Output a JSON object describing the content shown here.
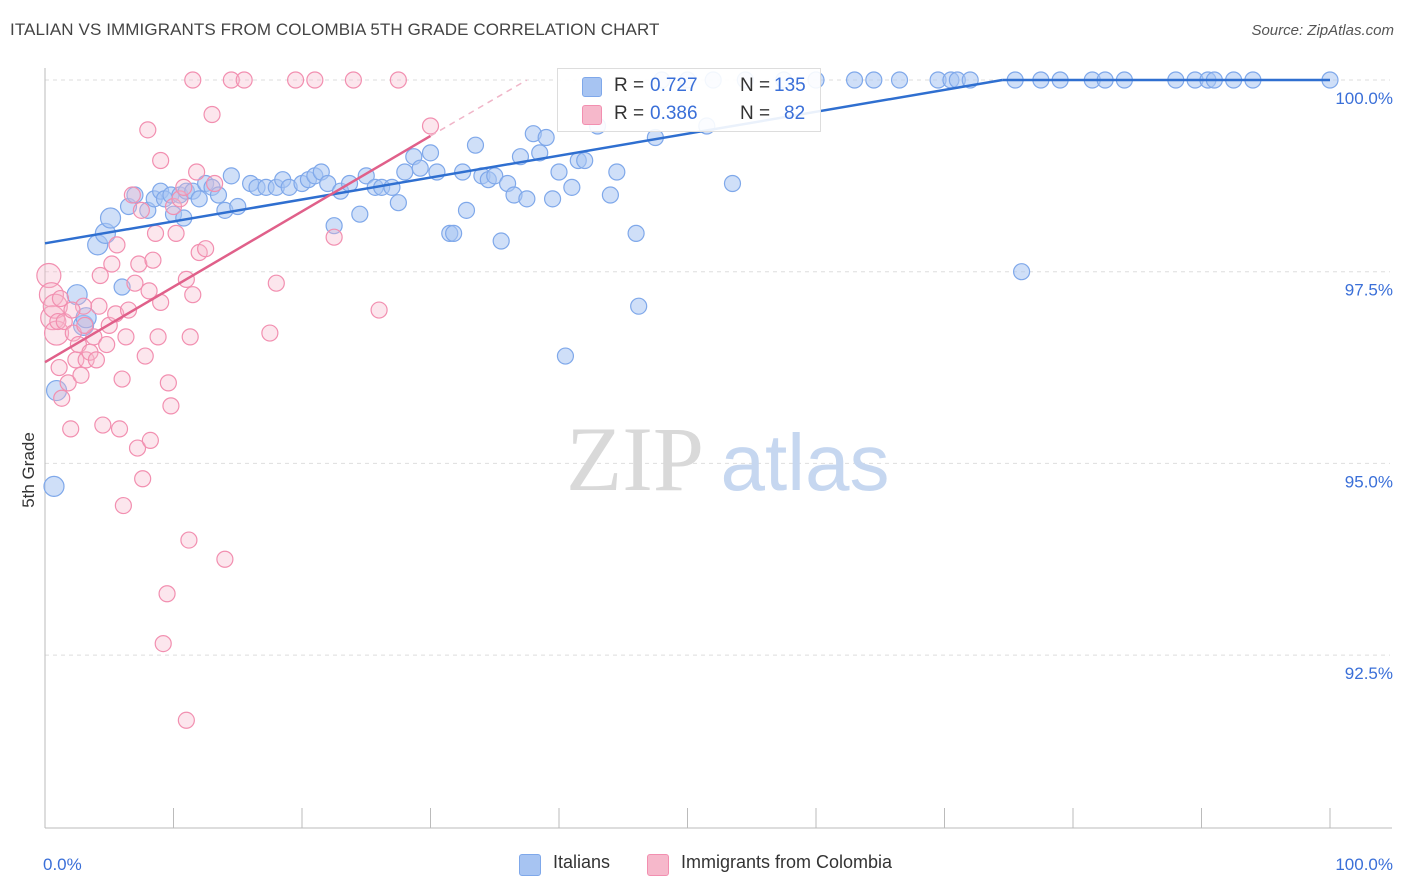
{
  "title": "ITALIAN VS IMMIGRANTS FROM COLOMBIA 5TH GRADE CORRELATION CHART",
  "source": "Source: ZipAtlas.com",
  "watermark": {
    "zip": "ZIP",
    "atlas": "atlas"
  },
  "legend_top": {
    "rows": [
      {
        "r_label": "R =",
        "r_value": "0.727",
        "n_label": "N =",
        "n_value": "135",
        "color": "#a7c4f2"
      },
      {
        "r_label": "R =",
        "r_value": "0.386",
        "n_label": "N =",
        "n_value": "82",
        "color": "#f6b8cb"
      }
    ]
  },
  "legend_bottom": [
    {
      "label": "Italians",
      "color": "#a7c4f2"
    },
    {
      "label": "Immigrants from Colombia",
      "color": "#f6b8cb"
    }
  ],
  "chart_data": {
    "type": "scatter",
    "title": "ITALIAN VS IMMIGRANTS FROM COLOMBIA 5TH GRADE CORRELATION CHART",
    "xlabel": "",
    "ylabel": "5th Grade",
    "xlim": [
      0,
      100
    ],
    "ylim": [
      90.25,
      100.35
    ],
    "x_tick_labels": [
      "0.0%",
      "100.0%"
    ],
    "y_ticks": [
      {
        "value": 100.0,
        "label": "100.0%"
      },
      {
        "value": 97.5,
        "label": "97.5%"
      },
      {
        "value": 95.0,
        "label": "95.0%"
      },
      {
        "value": 92.5,
        "label": "92.5%"
      }
    ],
    "grid": true,
    "series": [
      {
        "name": "Italians",
        "color": "#7fa8ea",
        "trend": {
          "x0": 0,
          "y0": 97.87,
          "x1": 74.5,
          "y1": 100.0
        },
        "points": [
          [
            0.7,
            94.7
          ],
          [
            0.9,
            95.95
          ],
          [
            2.5,
            97.2
          ],
          [
            3.0,
            96.8
          ],
          [
            3.2,
            96.9
          ],
          [
            4.1,
            97.85
          ],
          [
            4.7,
            98.0
          ],
          [
            5.1,
            98.2
          ],
          [
            6.0,
            97.3
          ],
          [
            6.5,
            98.35
          ],
          [
            7.0,
            98.5
          ],
          [
            8.0,
            98.3
          ],
          [
            8.5,
            98.45
          ],
          [
            9.0,
            98.55
          ],
          [
            9.3,
            98.45
          ],
          [
            9.8,
            98.5
          ],
          [
            10.5,
            98.5
          ],
          [
            10.0,
            98.25
          ],
          [
            10.8,
            98.2
          ],
          [
            11.0,
            98.55
          ],
          [
            11.5,
            98.55
          ],
          [
            12.0,
            98.45
          ],
          [
            12.5,
            98.65
          ],
          [
            13.0,
            98.6
          ],
          [
            13.5,
            98.5
          ],
          [
            14.0,
            98.3
          ],
          [
            14.5,
            98.75
          ],
          [
            15.0,
            98.35
          ],
          [
            16.0,
            98.65
          ],
          [
            16.5,
            98.6
          ],
          [
            17.2,
            98.6
          ],
          [
            18.0,
            98.6
          ],
          [
            18.5,
            98.7
          ],
          [
            19.0,
            98.6
          ],
          [
            20.0,
            98.65
          ],
          [
            20.5,
            98.7
          ],
          [
            21.0,
            98.75
          ],
          [
            21.5,
            98.8
          ],
          [
            22.0,
            98.65
          ],
          [
            22.5,
            98.1
          ],
          [
            23.0,
            98.55
          ],
          [
            23.7,
            98.65
          ],
          [
            24.5,
            98.25
          ],
          [
            25.0,
            98.75
          ],
          [
            25.7,
            98.6
          ],
          [
            26.2,
            98.6
          ],
          [
            27.0,
            98.6
          ],
          [
            27.5,
            98.4
          ],
          [
            28.0,
            98.8
          ],
          [
            28.7,
            99.0
          ],
          [
            29.2,
            98.85
          ],
          [
            30.0,
            99.05
          ],
          [
            30.5,
            98.8
          ],
          [
            31.5,
            98.0
          ],
          [
            31.8,
            98.0
          ],
          [
            32.5,
            98.8
          ],
          [
            32.8,
            98.3
          ],
          [
            33.5,
            99.15
          ],
          [
            34.0,
            98.75
          ],
          [
            34.5,
            98.7
          ],
          [
            35.0,
            98.75
          ],
          [
            35.5,
            97.9
          ],
          [
            36.0,
            98.65
          ],
          [
            36.5,
            98.5
          ],
          [
            37.0,
            99.0
          ],
          [
            37.5,
            98.45
          ],
          [
            38.0,
            99.3
          ],
          [
            38.5,
            99.05
          ],
          [
            39.0,
            99.25
          ],
          [
            39.5,
            98.45
          ],
          [
            40.0,
            98.8
          ],
          [
            40.5,
            96.4
          ],
          [
            41.0,
            98.6
          ],
          [
            41.5,
            98.95
          ],
          [
            42.0,
            98.95
          ],
          [
            43.0,
            99.4
          ],
          [
            44.0,
            98.5
          ],
          [
            44.5,
            98.8
          ],
          [
            46.0,
            98.0
          ],
          [
            46.2,
            97.05
          ],
          [
            47.5,
            99.25
          ],
          [
            48.0,
            100.0
          ],
          [
            50.0,
            100.0
          ],
          [
            51.5,
            99.4
          ],
          [
            52.0,
            100.0
          ],
          [
            53.5,
            98.65
          ],
          [
            54.5,
            100.0
          ],
          [
            57.5,
            100.0
          ],
          [
            60.0,
            100.0
          ],
          [
            63.0,
            100.0
          ],
          [
            64.5,
            100.0
          ],
          [
            66.5,
            100.0
          ],
          [
            69.5,
            100.0
          ],
          [
            70.5,
            100.0
          ],
          [
            71.0,
            100.0
          ],
          [
            72.0,
            100.0
          ],
          [
            75.5,
            100.0
          ],
          [
            76.0,
            97.5
          ],
          [
            77.5,
            100.0
          ],
          [
            79.0,
            100.0
          ],
          [
            81.5,
            100.0
          ],
          [
            82.5,
            100.0
          ],
          [
            84.0,
            100.0
          ],
          [
            88.0,
            100.0
          ],
          [
            89.5,
            100.0
          ],
          [
            90.5,
            100.0
          ],
          [
            91.0,
            100.0
          ],
          [
            92.5,
            100.0
          ],
          [
            94.0,
            100.0
          ],
          [
            100.0,
            100.0
          ]
        ]
      },
      {
        "name": "Immigrants from Colombia",
        "color": "#f28fb0",
        "trend": {
          "x0": 0,
          "y0": 96.32,
          "x1": 30.0,
          "y1": 99.27
        },
        "dashed_extension": {
          "x0": 30.0,
          "y0": 99.27,
          "x1": 37.5,
          "y1": 100.0
        },
        "points": [
          [
            0.3,
            97.45
          ],
          [
            0.5,
            97.2
          ],
          [
            0.6,
            96.9
          ],
          [
            0.8,
            97.05
          ],
          [
            0.9,
            96.7
          ],
          [
            1.0,
            96.85
          ],
          [
            1.1,
            96.25
          ],
          [
            1.2,
            97.15
          ],
          [
            1.3,
            95.85
          ],
          [
            1.5,
            96.85
          ],
          [
            1.8,
            96.05
          ],
          [
            2.0,
            95.45
          ],
          [
            2.2,
            96.7
          ],
          [
            2.4,
            96.35
          ],
          [
            2.6,
            96.55
          ],
          [
            2.8,
            96.15
          ],
          [
            3.0,
            97.05
          ],
          [
            3.2,
            96.35
          ],
          [
            3.5,
            96.45
          ],
          [
            3.8,
            96.65
          ],
          [
            4.0,
            96.35
          ],
          [
            4.2,
            97.05
          ],
          [
            4.5,
            95.5
          ],
          [
            4.8,
            96.55
          ],
          [
            5.0,
            96.8
          ],
          [
            5.2,
            97.6
          ],
          [
            5.5,
            96.95
          ],
          [
            5.8,
            95.45
          ],
          [
            6.0,
            96.1
          ],
          [
            6.3,
            96.65
          ],
          [
            6.5,
            97.0
          ],
          [
            6.8,
            98.5
          ],
          [
            7.0,
            97.35
          ],
          [
            7.2,
            95.2
          ],
          [
            7.5,
            98.3
          ],
          [
            7.8,
            96.4
          ],
          [
            7.3,
            97.6
          ],
          [
            8.0,
            99.35
          ],
          [
            8.2,
            95.3
          ],
          [
            8.4,
            97.65
          ],
          [
            8.6,
            98.0
          ],
          [
            8.8,
            96.65
          ],
          [
            9.0,
            97.1
          ],
          [
            9.2,
            92.65
          ],
          [
            9.5,
            93.3
          ],
          [
            9.8,
            95.75
          ],
          [
            10.0,
            98.35
          ],
          [
            10.5,
            98.45
          ],
          [
            11.0,
            97.4
          ],
          [
            11.3,
            96.65
          ],
          [
            11.5,
            97.2
          ],
          [
            11.8,
            98.8
          ],
          [
            12.0,
            97.75
          ],
          [
            11.0,
            91.65
          ],
          [
            11.2,
            94.0
          ],
          [
            11.5,
            100.0
          ],
          [
            12.5,
            97.8
          ],
          [
            13.0,
            99.55
          ],
          [
            14.0,
            93.75
          ],
          [
            14.5,
            100.0
          ],
          [
            15.5,
            100.0
          ],
          [
            17.5,
            96.7
          ],
          [
            18.0,
            97.35
          ],
          [
            19.5,
            100.0
          ],
          [
            21.0,
            100.0
          ],
          [
            22.5,
            97.95
          ],
          [
            24.0,
            100.0
          ],
          [
            26.0,
            97.0
          ],
          [
            27.5,
            100.0
          ],
          [
            30.0,
            99.4
          ],
          [
            13.2,
            98.65
          ],
          [
            9.0,
            98.95
          ],
          [
            5.6,
            97.85
          ],
          [
            4.3,
            97.45
          ],
          [
            3.1,
            96.8
          ],
          [
            2.1,
            97.0
          ],
          [
            6.1,
            94.45
          ],
          [
            7.6,
            94.8
          ],
          [
            10.2,
            98.0
          ],
          [
            10.8,
            98.6
          ],
          [
            9.6,
            96.05
          ],
          [
            8.1,
            97.25
          ]
        ]
      }
    ]
  }
}
